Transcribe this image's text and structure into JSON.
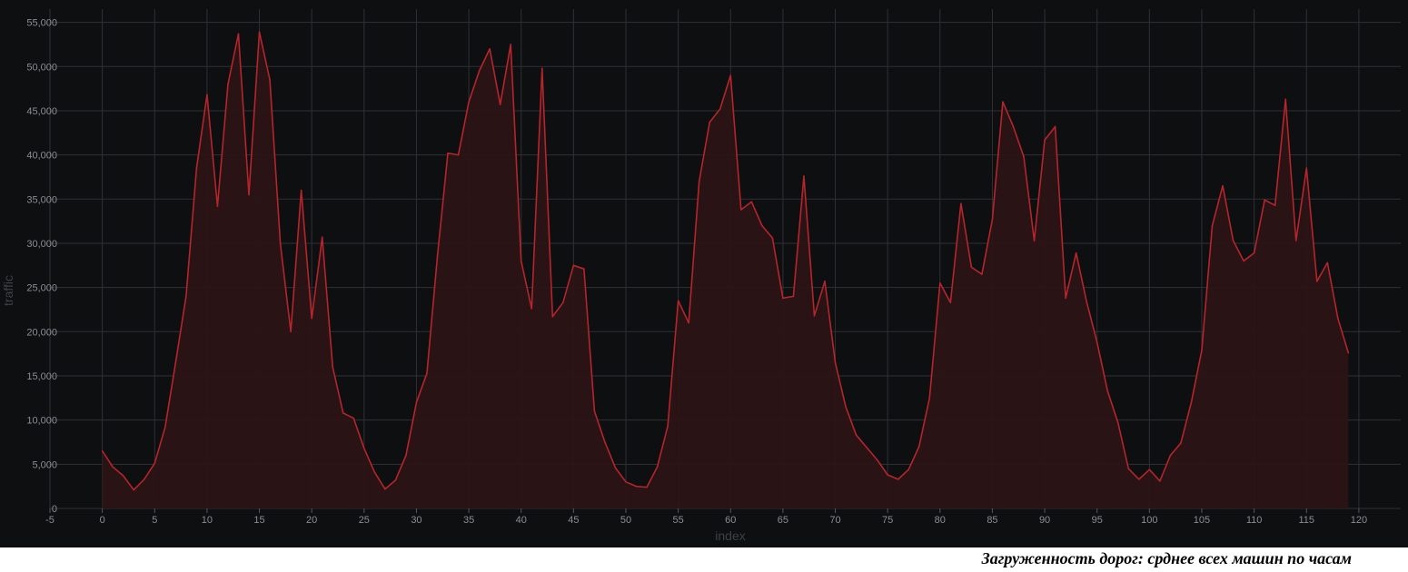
{
  "caption": "Загруженность дорог: срднее всех машин по часам",
  "chart_data": {
    "type": "area",
    "xlabel": "index",
    "ylabel": "traffic",
    "xlim": [
      -5,
      124
    ],
    "ylim": [
      0,
      56500
    ],
    "x_ticks": [
      -5,
      0,
      5,
      10,
      15,
      20,
      25,
      30,
      35,
      40,
      45,
      50,
      55,
      60,
      65,
      70,
      75,
      80,
      85,
      90,
      95,
      100,
      105,
      110,
      115,
      120
    ],
    "y_ticks": [
      0,
      5000,
      10000,
      15000,
      20000,
      25000,
      30000,
      35000,
      40000,
      45000,
      50000,
      55000
    ],
    "y_tick_labels": [
      "0",
      "5,000",
      "10,000",
      "15,000",
      "20,000",
      "25,000",
      "30,000",
      "35,000",
      "40,000",
      "45,000",
      "50,000",
      "55,000"
    ],
    "grid": true,
    "line_color": "#b5252b",
    "fill_color": "#2b1416",
    "background": "#0e0f11",
    "series": [
      {
        "x": [
          0,
          1,
          2,
          3,
          4,
          5,
          6,
          7,
          8,
          9,
          10,
          11,
          12,
          13,
          14,
          15,
          16,
          17,
          18,
          19,
          20,
          21,
          22,
          23,
          24,
          25,
          26,
          27,
          28,
          29,
          30,
          31,
          32,
          33,
          34,
          35,
          36,
          37,
          38,
          39,
          40,
          41,
          42,
          43,
          44,
          45,
          46,
          47,
          48,
          49,
          50,
          51,
          52,
          53,
          54,
          55,
          56,
          57,
          58,
          59,
          60,
          61,
          62,
          63,
          64,
          65,
          66,
          67,
          68,
          69,
          70,
          71,
          72,
          73,
          74,
          75,
          76,
          77,
          78,
          79,
          80,
          81,
          82,
          83,
          84,
          85,
          86,
          87,
          88,
          89,
          90,
          91,
          92,
          93,
          94,
          95,
          96,
          97,
          98,
          99,
          100,
          101,
          102,
          103,
          104,
          105,
          106,
          107,
          108,
          109,
          110,
          111,
          112,
          113,
          114,
          115,
          116,
          117,
          118,
          119
        ],
        "values": [
          6500,
          4700,
          3700,
          2100,
          3300,
          5100,
          9200,
          16500,
          24000,
          38500,
          46800,
          34200,
          48000,
          53700,
          35500,
          53900,
          48500,
          30000,
          20000,
          36000,
          21500,
          30700,
          16000,
          10800,
          10200,
          6800,
          4100,
          2200,
          3200,
          6000,
          12000,
          15300,
          28500,
          40200,
          40000,
          46000,
          49500,
          52000,
          45700,
          52500,
          28000,
          22600,
          49800,
          21700,
          23300,
          27500,
          27100,
          11000,
          7500,
          4600,
          3000,
          2500,
          2400,
          4700,
          9300,
          23500,
          21000,
          37000,
          43700,
          45200,
          49000,
          33800,
          34700,
          32000,
          30600,
          23800,
          24000,
          37600,
          21800,
          25700,
          16500,
          11500,
          8300,
          6900,
          5500,
          3800,
          3300,
          4400,
          7000,
          12500,
          25500,
          23300,
          34500,
          27300,
          26500,
          32700,
          46000,
          43200,
          39800,
          30300,
          41700,
          43200,
          23800,
          28900,
          23400,
          18800,
          13300,
          9700,
          4500,
          3300,
          4400,
          3100,
          6000,
          7400,
          12000,
          17900,
          32000,
          36500,
          30300,
          28000,
          28900,
          34900,
          34300,
          46300,
          30300,
          38500,
          25700,
          27800,
          21500,
          17600
        ]
      }
    ]
  }
}
